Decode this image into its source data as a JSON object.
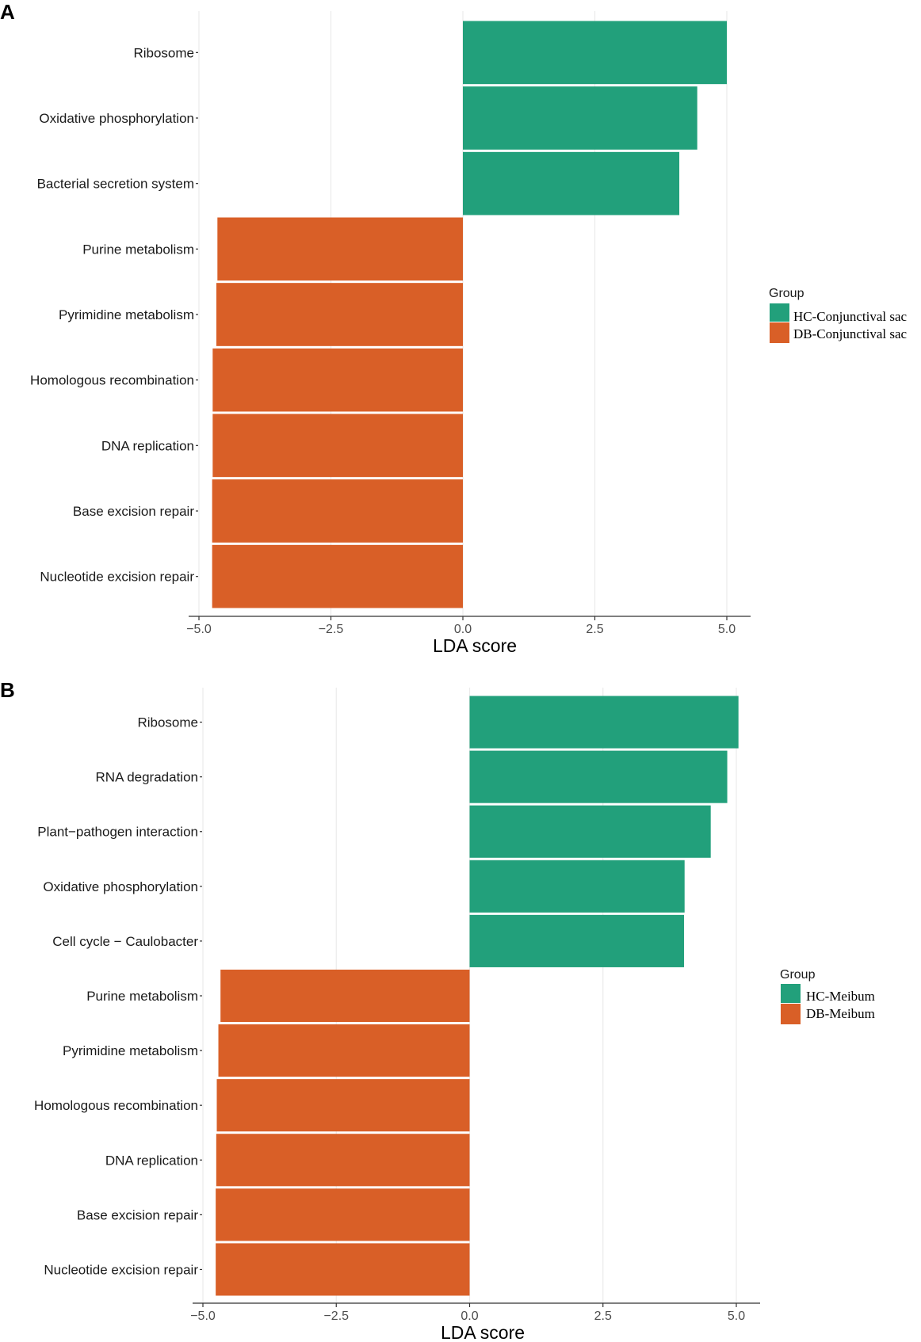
{
  "chart_data": [
    {
      "panel": "A",
      "type": "bar",
      "orientation": "horizontal",
      "xlabel": "LDA score",
      "xlim": [
        -5.0,
        5.0
      ],
      "xticks": [
        -5.0,
        -2.5,
        0.0,
        2.5,
        5.0
      ],
      "xtick_labels": [
        "−5.0",
        "−2.5",
        "0.0",
        "2.5",
        "5.0"
      ],
      "legend_title": "Group",
      "legend_position": "right",
      "groups": [
        {
          "name": "HC-Conjunctival sac",
          "color": "#22a07b"
        },
        {
          "name": "DB-Conjunctival sac",
          "color": "#d95f27"
        }
      ],
      "categories": [
        "Ribosome",
        "Oxidative phosphorylation",
        "Bacterial secretion system",
        "Purine metabolism",
        "Pyrimidine metabolism",
        "Homologous recombination",
        "DNA replication",
        "Base excision repair",
        "Nucleotide excision repair"
      ],
      "values": [
        5.0,
        4.44,
        4.1,
        -4.65,
        -4.67,
        -4.74,
        -4.74,
        -4.75,
        -4.75
      ],
      "bar_groups": [
        0,
        0,
        0,
        1,
        1,
        1,
        1,
        1,
        1
      ]
    },
    {
      "panel": "B",
      "type": "bar",
      "orientation": "horizontal",
      "xlabel": "LDA score",
      "xlim": [
        -5.0,
        5.0
      ],
      "xticks": [
        -5.0,
        -2.5,
        0.0,
        2.5,
        5.0
      ],
      "xtick_labels": [
        "−5.0",
        "−2.5",
        "0.0",
        "2.5",
        "5.0"
      ],
      "legend_title": "Group",
      "legend_position": "right",
      "groups": [
        {
          "name": "HC-Meibum",
          "color": "#22a07b"
        },
        {
          "name": "DB-Meibum",
          "color": "#d95f27"
        }
      ],
      "categories": [
        "Ribosome",
        "RNA degradation",
        "Plant−pathogen interaction",
        "Oxidative phosphorylation",
        "Cell cycle − Caulobacter",
        "Purine metabolism",
        "Pyrimidine metabolism",
        "Homologous recombination",
        "DNA replication",
        "Base excision repair",
        "Nucleotide excision repair"
      ],
      "values": [
        5.04,
        4.83,
        4.52,
        4.03,
        4.02,
        -4.67,
        -4.71,
        -4.74,
        -4.75,
        -4.76,
        -4.76
      ],
      "bar_groups": [
        0,
        0,
        0,
        0,
        0,
        1,
        1,
        1,
        1,
        1,
        1
      ]
    }
  ]
}
